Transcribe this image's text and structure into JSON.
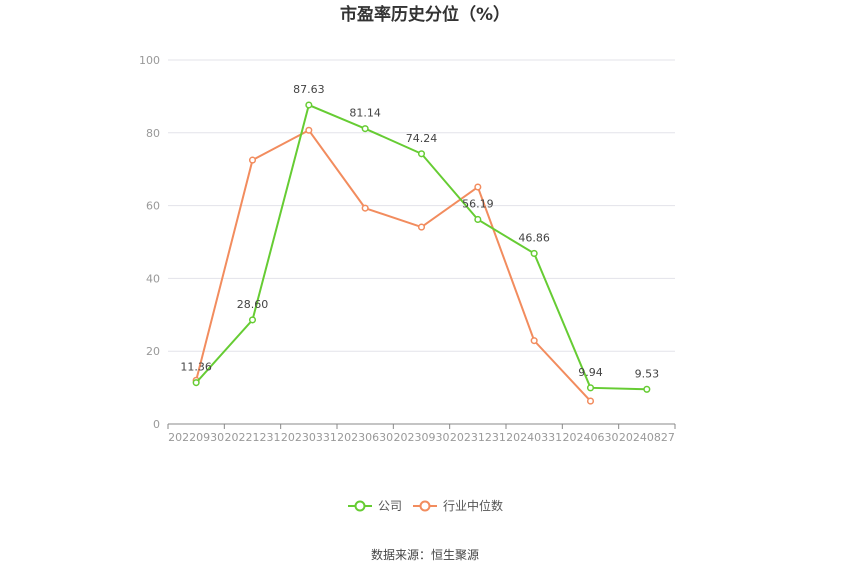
{
  "chart_data": {
    "type": "line",
    "title": "市盈率历史分位（%）",
    "categories": [
      "20220930",
      "20221231",
      "20230331",
      "20230630",
      "20230930",
      "20231231",
      "20240331",
      "20240630",
      "20240827"
    ],
    "ylim": [
      0,
      100
    ],
    "yticks": [
      "0",
      "20",
      "40",
      "60",
      "80",
      "100"
    ],
    "grid": true,
    "legend_position": "bottom",
    "series": [
      {
        "name": "公司",
        "color": "#66cc33",
        "values": [
          11.36,
          28.6,
          87.63,
          81.14,
          74.24,
          56.19,
          46.86,
          9.94,
          9.53
        ],
        "labels": [
          "11.36",
          "28.60",
          "87.63",
          "81.14",
          "74.24",
          "56.19",
          "46.86",
          "9.94",
          "9.53"
        ]
      },
      {
        "name": "行业中位数",
        "color": "#f28c5e",
        "values": [
          12.0,
          72.5,
          80.7,
          59.3,
          54.1,
          65.1,
          22.9,
          6.3,
          null
        ]
      }
    ],
    "source": "数据来源：恒生聚源"
  }
}
